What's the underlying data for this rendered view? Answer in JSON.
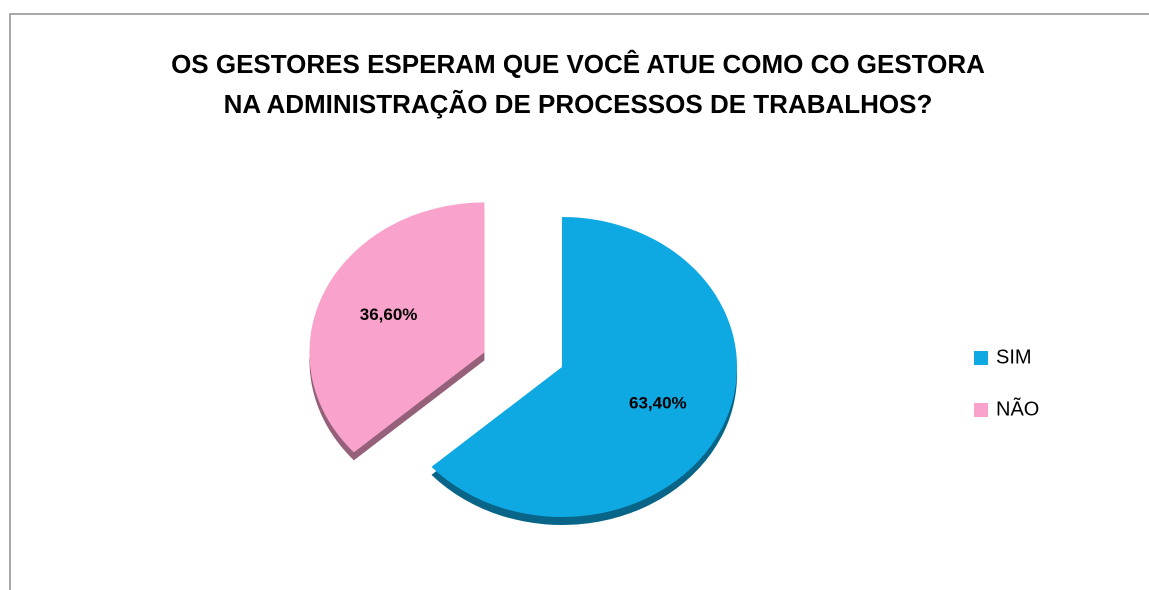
{
  "chart_data": {
    "type": "pie",
    "title": [
      "OS GESTORES ESPERAM QUE VOCÊ ATUE COMO CO GESTORA",
      "NA ADMINISTRAÇÃO DE PROCESSOS DE TRABALHOS?"
    ],
    "categories": [
      "SIM",
      "NÃO"
    ],
    "values": [
      63.4,
      36.6
    ],
    "value_labels": [
      "63,40%",
      "36,60%"
    ],
    "colors": [
      "#0ea8e2",
      "#f9a2cb"
    ],
    "legend": "right"
  }
}
